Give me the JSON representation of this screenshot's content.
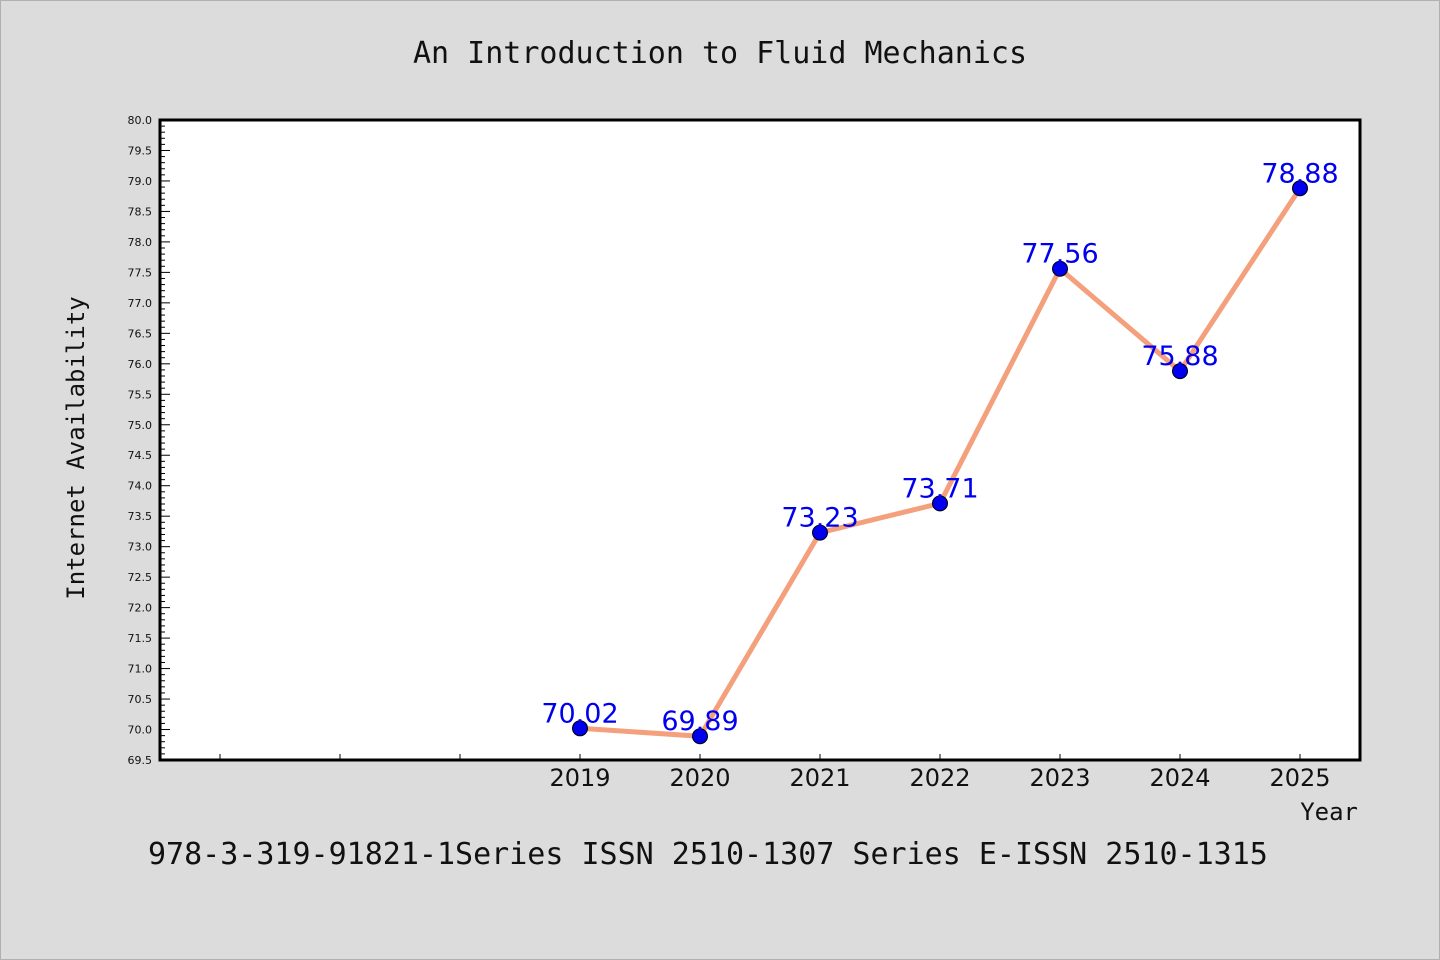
{
  "chart_data": {
    "type": "line",
    "title": "An Introduction to Fluid Mechanics",
    "xlabel": "Year",
    "ylabel": "Internet Availability",
    "x": [
      "2019",
      "2020",
      "2021",
      "2022",
      "2023",
      "2024",
      "2025"
    ],
    "values": [
      70.02,
      69.89,
      73.23,
      73.71,
      77.56,
      75.88,
      78.88
    ],
    "data_labels": [
      "70.02",
      "69.89",
      "73.23",
      "73.71",
      "77.56",
      "75.88",
      "78.88"
    ],
    "ylim": [
      69.5,
      80.0
    ],
    "yticks": [
      "69.5",
      "70.0",
      "70.5",
      "71.0",
      "71.5",
      "72.0",
      "72.5",
      "73.0",
      "73.5",
      "74.0",
      "74.5",
      "75.0",
      "75.5",
      "76.0",
      "76.5",
      "77.0",
      "77.5",
      "78.0",
      "78.5",
      "79.0",
      "79.5",
      "80.0"
    ],
    "line_color": "#f4a07c",
    "marker_color": "#0000ee",
    "label_color": "#0000ee",
    "grid": false,
    "legend": "none"
  },
  "footer": "978-3-319-91821-1Series ISSN 2510-1307 Series E-ISSN 2510-1315"
}
